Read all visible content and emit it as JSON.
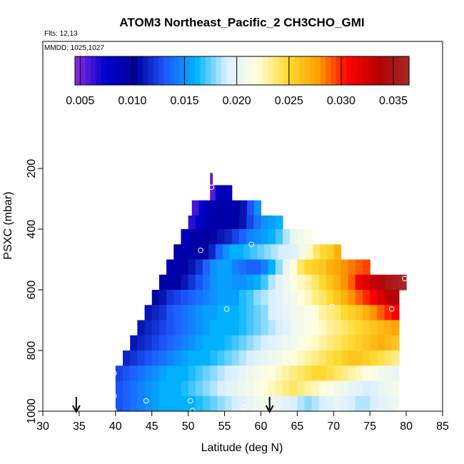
{
  "chart_data": {
    "type": "heatmap",
    "title": "ATOM3 Northeast_Pacific_2 CH3CHO_GMI",
    "annotations": [
      "Flts: 12,13",
      "MMDD: 1025,1027"
    ],
    "xlabel": "Latitude (deg N)",
    "ylabel": "PSXC (mbar)",
    "xlim": [
      30,
      85
    ],
    "ylim": [
      1000,
      0
    ],
    "xticks": [
      30,
      35,
      40,
      45,
      50,
      55,
      60,
      65,
      70,
      75,
      80,
      85
    ],
    "yticks": [
      200,
      400,
      600,
      800,
      1000
    ],
    "colorbar": {
      "range": [
        0.0045,
        0.0365
      ],
      "ticks": [
        "0.005",
        "0.010",
        "0.015",
        "0.020",
        "0.025",
        "0.030",
        "0.035"
      ],
      "tick_values": [
        0.005,
        0.01,
        0.015,
        0.02,
        0.025,
        0.03,
        0.035
      ],
      "colors": [
        "#8a2be2",
        "#0000cd",
        "#00009b",
        "#1e5aff",
        "#00b4ff",
        "#dcf0ff",
        "#ffffe0",
        "#ffdc32",
        "#ffa000",
        "#ff0000",
        "#b40000",
        "#a52a2a"
      ],
      "position": "top"
    },
    "bands": [
      {
        "p": 280,
        "lat_start": 53.0,
        "lat_end": 56.0,
        "values": [
          0.0055,
          0.008,
          0.009,
          0.0085
        ]
      },
      {
        "p": 330,
        "lat_start": 50.5,
        "lat_end": 60.0,
        "values": [
          0.006,
          0.0075,
          0.009,
          0.0095,
          0.0095,
          0.009,
          0.0095,
          0.011,
          0.013,
          0.015
        ]
      },
      {
        "p": 380,
        "lat_start": 50.0,
        "lat_end": 63.0,
        "values": [
          0.0065,
          0.008,
          0.009,
          0.0095,
          0.0095,
          0.0095,
          0.01,
          0.011,
          0.0125,
          0.014,
          0.015,
          0.0155,
          0.016
        ]
      },
      {
        "p": 425,
        "lat_start": 49.0,
        "lat_end": 67.0,
        "values": [
          0.0085,
          0.0095,
          0.0095,
          0.01,
          0.0105,
          0.011,
          0.0115,
          0.0125,
          0.0135,
          0.0145,
          0.015,
          0.0155,
          0.016,
          0.017,
          0.0185,
          0.02,
          0.021,
          0.0215
        ]
      },
      {
        "p": 475,
        "lat_start": 48.0,
        "lat_end": 71.0,
        "values": [
          0.0095,
          0.0095,
          0.0095,
          0.0095,
          0.01,
          0.0115,
          0.0135,
          0.015,
          0.016,
          0.016,
          0.0165,
          0.017,
          0.0175,
          0.018,
          0.0185,
          0.019,
          0.019,
          0.0195,
          0.021,
          0.0225,
          0.024,
          0.025,
          0.0255,
          0.027
        ]
      },
      {
        "p": 525,
        "lat_start": 47.0,
        "lat_end": 75.0,
        "values": [
          0.0095,
          0.0095,
          0.01,
          0.011,
          0.012,
          0.0135,
          0.015,
          0.0155,
          0.0155,
          0.0145,
          0.014,
          0.0135,
          0.0135,
          0.0145,
          0.016,
          0.018,
          0.02,
          0.022,
          0.024,
          0.025,
          0.0255,
          0.026,
          0.027,
          0.0275,
          0.028,
          0.0285,
          0.029,
          0.0295
        ]
      },
      {
        "p": 575,
        "lat_start": 46.0,
        "lat_end": 80.0,
        "values": [
          0.0095,
          0.0095,
          0.01,
          0.011,
          0.012,
          0.013,
          0.014,
          0.015,
          0.0155,
          0.0155,
          0.015,
          0.015,
          0.0155,
          0.016,
          0.017,
          0.0185,
          0.0195,
          0.0205,
          0.0215,
          0.0225,
          0.023,
          0.024,
          0.025,
          0.026,
          0.027,
          0.028,
          0.029,
          0.031,
          0.032,
          0.033,
          0.034,
          0.035,
          0.0355,
          0.036
        ]
      },
      {
        "p": 625,
        "lat_start": 45.0,
        "lat_end": 79.0,
        "values": [
          0.0105,
          0.011,
          0.012,
          0.0125,
          0.013,
          0.0135,
          0.014,
          0.0145,
          0.015,
          0.0155,
          0.0155,
          0.0155,
          0.0165,
          0.017,
          0.018,
          0.0185,
          0.019,
          0.0195,
          0.0205,
          0.021,
          0.022,
          0.0225,
          0.0235,
          0.024,
          0.025,
          0.026,
          0.027,
          0.028,
          0.029,
          0.03,
          0.031,
          0.032,
          0.033,
          0.034
        ]
      },
      {
        "p": 675,
        "lat_start": 44.0,
        "lat_end": 79.0,
        "values": [
          0.011,
          0.0115,
          0.012,
          0.013,
          0.0135,
          0.014,
          0.0145,
          0.015,
          0.0155,
          0.0155,
          0.016,
          0.016,
          0.016,
          0.0165,
          0.017,
          0.0175,
          0.018,
          0.019,
          0.0195,
          0.02,
          0.0205,
          0.021,
          0.0215,
          0.022,
          0.023,
          0.0235,
          0.024,
          0.025,
          0.0255,
          0.026,
          0.027,
          0.028,
          0.029,
          0.03,
          0.031
        ]
      },
      {
        "p": 725,
        "lat_start": 43.0,
        "lat_end": 79.0,
        "values": [
          0.011,
          0.0115,
          0.012,
          0.0125,
          0.013,
          0.0135,
          0.014,
          0.0145,
          0.015,
          0.0155,
          0.016,
          0.016,
          0.016,
          0.016,
          0.0165,
          0.017,
          0.0175,
          0.018,
          0.0185,
          0.019,
          0.0195,
          0.0205,
          0.021,
          0.0215,
          0.022,
          0.0225,
          0.023,
          0.0235,
          0.024,
          0.0245,
          0.025,
          0.0255,
          0.026,
          0.0265,
          0.027,
          0.0275
        ]
      },
      {
        "p": 775,
        "lat_start": 42.0,
        "lat_end": 79.0,
        "values": [
          0.011,
          0.0115,
          0.012,
          0.0125,
          0.013,
          0.0135,
          0.014,
          0.0145,
          0.015,
          0.0155,
          0.016,
          0.016,
          0.016,
          0.0165,
          0.017,
          0.0175,
          0.018,
          0.0185,
          0.019,
          0.0195,
          0.02,
          0.0205,
          0.021,
          0.0215,
          0.022,
          0.0225,
          0.023,
          0.0235,
          0.024,
          0.0245,
          0.025,
          0.0255,
          0.026,
          0.0265,
          0.027,
          0.0265,
          0.026
        ]
      },
      {
        "p": 825,
        "lat_start": 41.0,
        "lat_end": 79.0,
        "values": [
          0.0115,
          0.012,
          0.0125,
          0.013,
          0.0135,
          0.014,
          0.0145,
          0.015,
          0.0155,
          0.016,
          0.016,
          0.016,
          0.0165,
          0.017,
          0.0175,
          0.018,
          0.0185,
          0.019,
          0.0195,
          0.02,
          0.0205,
          0.021,
          0.0215,
          0.022,
          0.0225,
          0.023,
          0.0235,
          0.024,
          0.0245,
          0.025,
          0.0255,
          0.026,
          0.026,
          0.0255,
          0.025,
          0.0245,
          0.024,
          0.0235
        ]
      },
      {
        "p": 875,
        "lat_start": 40.0,
        "lat_end": 79.0,
        "values": [
          0.0125,
          0.013,
          0.0135,
          0.014,
          0.0145,
          0.015,
          0.0155,
          0.016,
          0.016,
          0.016,
          0.0165,
          0.017,
          0.0175,
          0.018,
          0.0185,
          0.019,
          0.0195,
          0.02,
          0.0205,
          0.021,
          0.0215,
          0.022,
          0.0225,
          0.023,
          0.0235,
          0.024,
          0.0245,
          0.025,
          0.025,
          0.0245,
          0.024,
          0.0235,
          0.023,
          0.0225,
          0.022,
          0.0215,
          0.021,
          0.0205,
          0.02
        ]
      },
      {
        "p": 925,
        "lat_start": 40.0,
        "lat_end": 79.0,
        "values": [
          0.013,
          0.0135,
          0.014,
          0.0145,
          0.015,
          0.0155,
          0.016,
          0.016,
          0.016,
          0.0165,
          0.017,
          0.0175,
          0.018,
          0.0185,
          0.019,
          0.0195,
          0.02,
          0.0205,
          0.021,
          0.0215,
          0.022,
          0.0225,
          0.023,
          0.0235,
          0.024,
          0.0235,
          0.023,
          0.0225,
          0.022,
          0.0215,
          0.021,
          0.0205,
          0.02,
          0.0195,
          0.019,
          0.0195,
          0.02,
          0.0205,
          0.021
        ]
      },
      {
        "p": 975,
        "lat_start": 40.0,
        "lat_end": 79.0,
        "values": [
          0.013,
          0.0135,
          0.014,
          0.0145,
          0.015,
          0.0155,
          0.016,
          0.016,
          0.016,
          0.016,
          0.016,
          0.0165,
          0.017,
          0.0175,
          0.018,
          0.0185,
          0.019,
          0.0195,
          0.02,
          0.0205,
          0.021,
          0.0205,
          0.02,
          0.0195,
          0.019,
          0.0185,
          0.018,
          0.0185,
          0.019,
          0.0195,
          0.02,
          0.0195,
          0.019,
          0.0185,
          0.0185,
          0.019,
          0.0195,
          0.02,
          0.0205
        ]
      }
    ],
    "top_spike": {
      "lat": 53.2,
      "p_top": 215,
      "p_bottom": 262,
      "value": 0.0055
    },
    "observations": [
      {
        "lat": 53.2,
        "p": 262
      },
      {
        "lat": 51.7,
        "p": 470
      },
      {
        "lat": 58.7,
        "p": 450
      },
      {
        "lat": 55.3,
        "p": 663
      },
      {
        "lat": 69.8,
        "p": 655
      },
      {
        "lat": 78.0,
        "p": 663
      },
      {
        "lat": 79.8,
        "p": 563
      },
      {
        "lat": 39.8,
        "p": 875
      },
      {
        "lat": 39.8,
        "p": 950
      },
      {
        "lat": 44.2,
        "p": 966
      },
      {
        "lat": 50.3,
        "p": 966
      },
      {
        "lat": 39.8,
        "p": 998
      },
      {
        "lat": 50.6,
        "p": 998
      },
      {
        "lat": 57.7,
        "p": 988
      },
      {
        "lat": 78.8,
        "p": 988
      }
    ],
    "arrows": [
      {
        "lat": 34.6
      },
      {
        "lat": 61.2
      }
    ]
  }
}
